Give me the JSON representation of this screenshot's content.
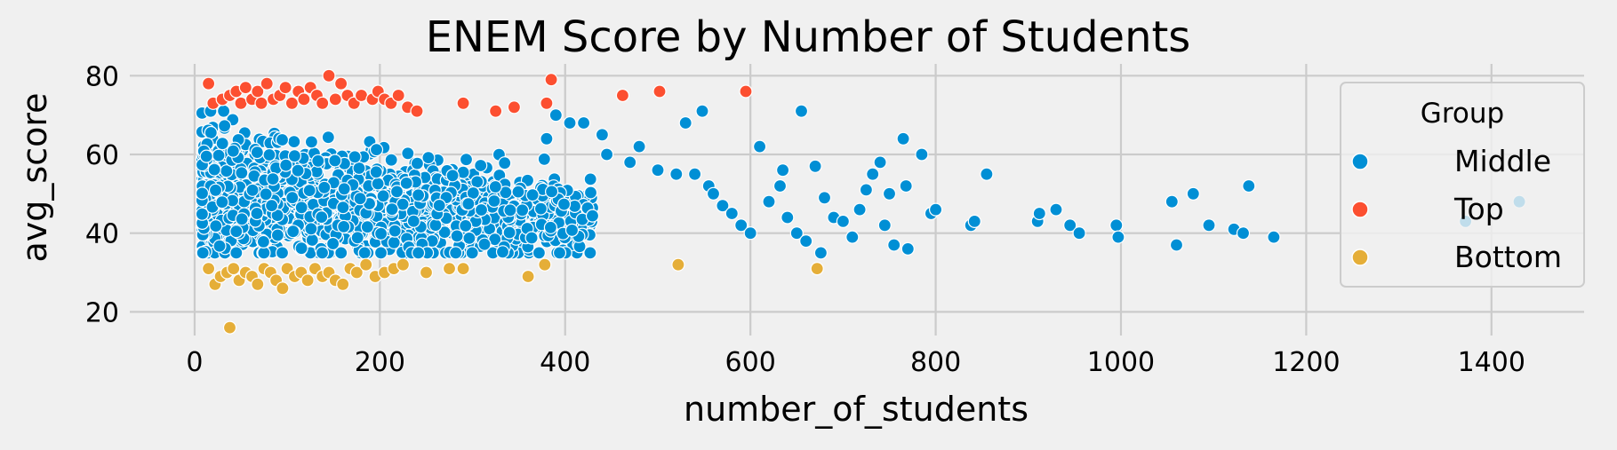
{
  "chart_data": {
    "type": "scatter",
    "title": "ENEM Score by Number of Students",
    "xlabel": "number_of_students",
    "ylabel": "avg_score",
    "xlim": [
      -70,
      1500
    ],
    "ylim": [
      14,
      83
    ],
    "xticks": [
      0,
      200,
      400,
      600,
      800,
      1000,
      1200,
      1400
    ],
    "yticks": [
      20,
      40,
      60,
      80
    ],
    "grid": true,
    "legend": {
      "title": "Group",
      "placement": "top-right"
    },
    "series": [
      {
        "name": "Middle",
        "color": "#008fd5",
        "dense_cluster": {
          "x_range": [
            8,
            430
          ],
          "y_range": [
            35,
            71
          ]
        },
        "points": [
          [
            440,
            65
          ],
          [
            405,
            68
          ],
          [
            420,
            68
          ],
          [
            390,
            70
          ],
          [
            380,
            64
          ],
          [
            445,
            60
          ],
          [
            470,
            58
          ],
          [
            480,
            62
          ],
          [
            500,
            56
          ],
          [
            520,
            55
          ],
          [
            530,
            68
          ],
          [
            548,
            71
          ],
          [
            540,
            55
          ],
          [
            555,
            52
          ],
          [
            560,
            50
          ],
          [
            570,
            47
          ],
          [
            580,
            45
          ],
          [
            590,
            42
          ],
          [
            600,
            40
          ],
          [
            610,
            62
          ],
          [
            620,
            48
          ],
          [
            632,
            52
          ],
          [
            635,
            56
          ],
          [
            640,
            44
          ],
          [
            650,
            40
          ],
          [
            655,
            71
          ],
          [
            660,
            38
          ],
          [
            670,
            57
          ],
          [
            676,
            35
          ],
          [
            680,
            49
          ],
          [
            690,
            44
          ],
          [
            700,
            43
          ],
          [
            710,
            39
          ],
          [
            718,
            46
          ],
          [
            725,
            51
          ],
          [
            732,
            55
          ],
          [
            740,
            58
          ],
          [
            745,
            42
          ],
          [
            750,
            50
          ],
          [
            755,
            37
          ],
          [
            765,
            64
          ],
          [
            768,
            52
          ],
          [
            770,
            36
          ],
          [
            785,
            60
          ],
          [
            795,
            45
          ],
          [
            800,
            46
          ],
          [
            838,
            42
          ],
          [
            842,
            43
          ],
          [
            855,
            55
          ],
          [
            910,
            43
          ],
          [
            912,
            45
          ],
          [
            930,
            46
          ],
          [
            945,
            42
          ],
          [
            955,
            40
          ],
          [
            995,
            42
          ],
          [
            997,
            39
          ],
          [
            1055,
            48
          ],
          [
            1060,
            37
          ],
          [
            1078,
            50
          ],
          [
            1095,
            42
          ],
          [
            1122,
            41
          ],
          [
            1132,
            40
          ],
          [
            1138,
            52
          ],
          [
            1165,
            39
          ],
          [
            1372,
            43
          ],
          [
            1430,
            48
          ]
        ]
      },
      {
        "name": "Top",
        "color": "#fc4f30",
        "points": [
          [
            15,
            78
          ],
          [
            20,
            73
          ],
          [
            30,
            74
          ],
          [
            38,
            75
          ],
          [
            45,
            76
          ],
          [
            50,
            73
          ],
          [
            55,
            77
          ],
          [
            62,
            74
          ],
          [
            68,
            76
          ],
          [
            72,
            73
          ],
          [
            78,
            78
          ],
          [
            85,
            74
          ],
          [
            92,
            75
          ],
          [
            98,
            77
          ],
          [
            105,
            73
          ],
          [
            112,
            76
          ],
          [
            118,
            74
          ],
          [
            125,
            77
          ],
          [
            132,
            75
          ],
          [
            138,
            73
          ],
          [
            145,
            80
          ],
          [
            152,
            74
          ],
          [
            158,
            78
          ],
          [
            165,
            75
          ],
          [
            172,
            73
          ],
          [
            180,
            75
          ],
          [
            192,
            74
          ],
          [
            198,
            76
          ],
          [
            205,
            74
          ],
          [
            212,
            73
          ],
          [
            220,
            75
          ],
          [
            230,
            72
          ],
          [
            240,
            71
          ],
          [
            290,
            73
          ],
          [
            325,
            71
          ],
          [
            345,
            72
          ],
          [
            380,
            73
          ],
          [
            385,
            79
          ],
          [
            462,
            75
          ],
          [
            502,
            76
          ],
          [
            595,
            76
          ]
        ]
      },
      {
        "name": "Bottom",
        "color": "#e5ae38",
        "points": [
          [
            15,
            31
          ],
          [
            22,
            27
          ],
          [
            28,
            29
          ],
          [
            35,
            30
          ],
          [
            38,
            16
          ],
          [
            42,
            31
          ],
          [
            48,
            28
          ],
          [
            55,
            30
          ],
          [
            62,
            29
          ],
          [
            68,
            27
          ],
          [
            75,
            31
          ],
          [
            82,
            30
          ],
          [
            88,
            28
          ],
          [
            95,
            26
          ],
          [
            100,
            31
          ],
          [
            108,
            29
          ],
          [
            115,
            30
          ],
          [
            122,
            28
          ],
          [
            130,
            31
          ],
          [
            138,
            29
          ],
          [
            145,
            30
          ],
          [
            152,
            28
          ],
          [
            160,
            27
          ],
          [
            168,
            31
          ],
          [
            175,
            30
          ],
          [
            185,
            32
          ],
          [
            195,
            29
          ],
          [
            205,
            30
          ],
          [
            215,
            31
          ],
          [
            225,
            32
          ],
          [
            250,
            30
          ],
          [
            275,
            31
          ],
          [
            290,
            31
          ],
          [
            360,
            29
          ],
          [
            378,
            32
          ],
          [
            522,
            32
          ],
          [
            672,
            31
          ]
        ]
      }
    ]
  }
}
